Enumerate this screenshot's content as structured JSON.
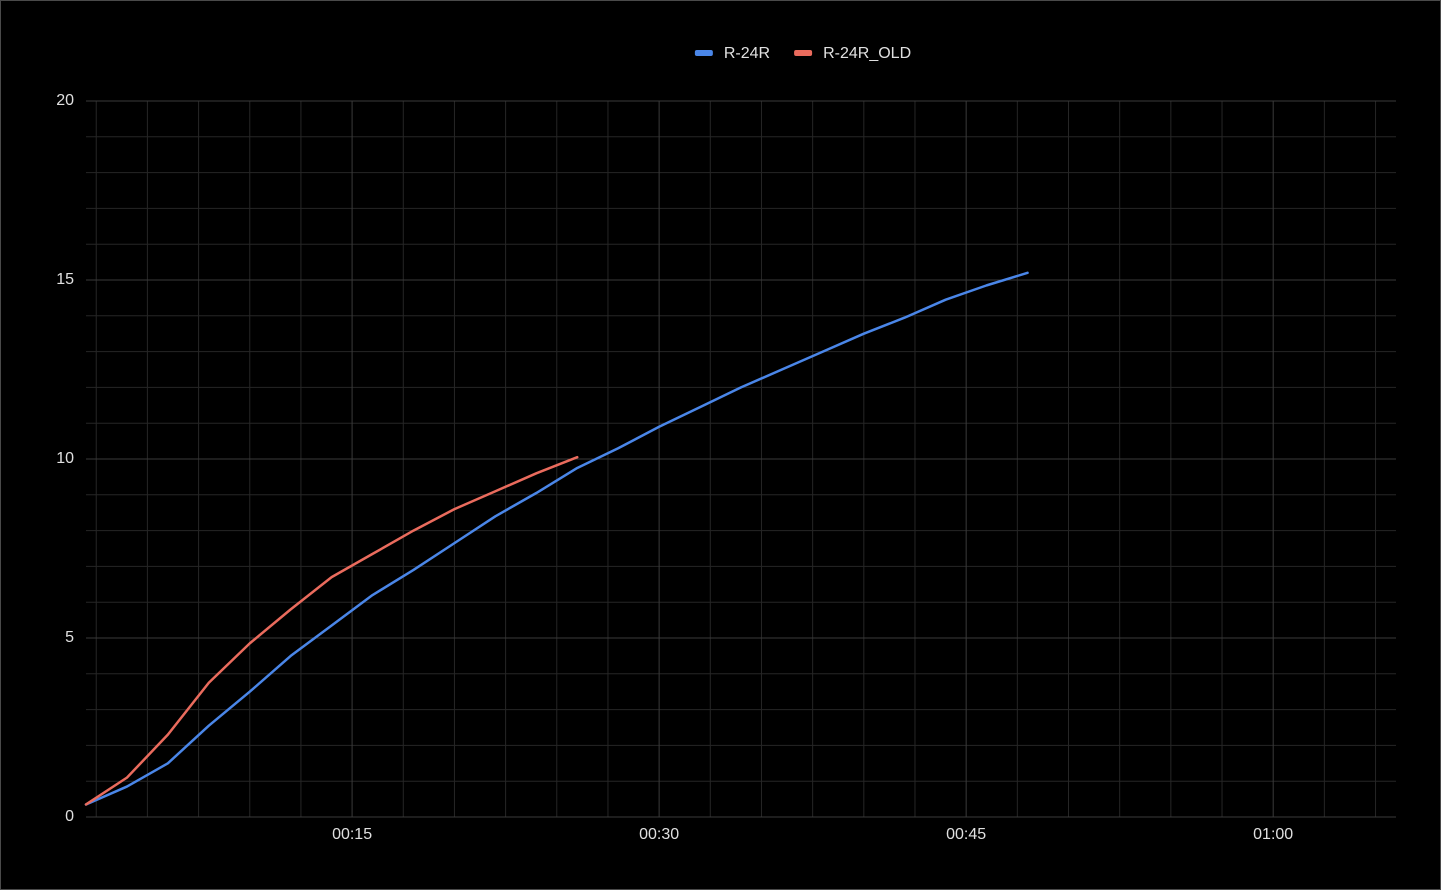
{
  "chart_data": {
    "type": "line",
    "series": [
      {
        "name": "R-24R",
        "color": "#4a86e8",
        "x": [
          2,
          4,
          6,
          8,
          10,
          12,
          14,
          16,
          18,
          20,
          22,
          24,
          26,
          28,
          30,
          32,
          34,
          36,
          38,
          40,
          42,
          44,
          46,
          48
        ],
        "values": [
          0.35,
          0.85,
          1.5,
          2.55,
          3.5,
          4.5,
          5.35,
          6.2,
          6.9,
          7.65,
          8.4,
          9.05,
          9.75,
          10.3,
          10.9,
          11.45,
          12.0,
          12.5,
          13.0,
          13.5,
          13.95,
          14.45,
          14.85,
          15.2
        ]
      },
      {
        "name": "R-24R_OLD",
        "color": "#ea6b5d",
        "x": [
          2,
          4,
          6,
          8,
          10,
          12,
          14,
          16,
          18,
          20,
          22,
          24,
          26
        ],
        "values": [
          0.35,
          1.1,
          2.3,
          3.75,
          4.85,
          5.8,
          6.7,
          7.35,
          8.0,
          8.6,
          9.1,
          9.6,
          10.05
        ]
      }
    ],
    "xlim": [
      2,
      66
    ],
    "xticks": [
      {
        "value": 15,
        "label": "00:15"
      },
      {
        "value": 30,
        "label": "00:30"
      },
      {
        "value": 45,
        "label": "00:45"
      },
      {
        "value": 60,
        "label": "01:00"
      }
    ],
    "xminorticks": [
      2.5,
      5,
      7.5,
      10,
      12.5,
      17.5,
      20,
      22.5,
      25,
      27.5,
      32.5,
      35,
      37.5,
      40,
      42.5,
      47.5,
      50,
      52.5,
      55,
      57.5,
      62.5,
      65
    ],
    "ylim": [
      0,
      20
    ],
    "yticks": [
      0,
      5,
      10,
      15,
      20
    ],
    "yminorticks": [
      1,
      2,
      3,
      4,
      6,
      7,
      8,
      9,
      11,
      12,
      13,
      14,
      16,
      17,
      18,
      19
    ],
    "grid": true,
    "legend": "top"
  }
}
